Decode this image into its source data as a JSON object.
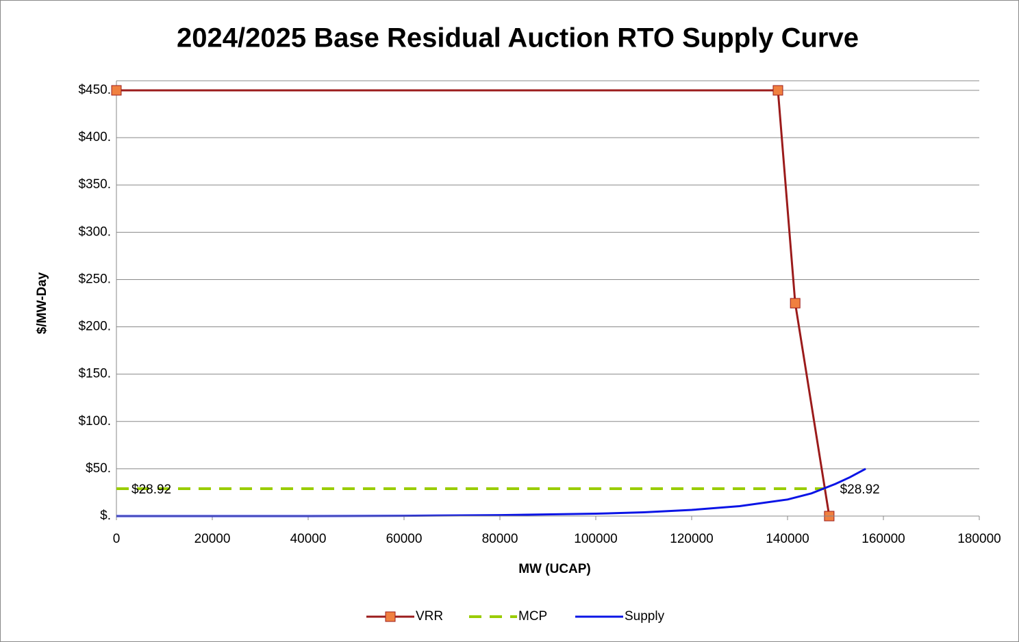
{
  "chart_data": {
    "type": "line",
    "title": "2024/2025 Base Residual Auction RTO Supply Curve",
    "x_label": "MW (UCAP)",
    "y_label": "$/MW-Day",
    "xlim": [
      0,
      180000
    ],
    "xticks": [
      0,
      20000,
      40000,
      60000,
      80000,
      100000,
      120000,
      140000,
      160000,
      180000
    ],
    "ylim": [
      0,
      450
    ],
    "yticks": [
      {
        "value": 0,
        "label": "$."
      },
      {
        "value": 50,
        "label": "$50."
      },
      {
        "value": 100,
        "label": "$100."
      },
      {
        "value": 150,
        "label": "$150."
      },
      {
        "value": 200,
        "label": "$200."
      },
      {
        "value": 250,
        "label": "$250."
      },
      {
        "value": 300,
        "label": "$300."
      },
      {
        "value": 350,
        "label": "$350."
      },
      {
        "value": 400,
        "label": "$400."
      },
      {
        "value": 450,
        "label": "$450."
      }
    ],
    "grid": true,
    "legend": "bottom",
    "series": [
      {
        "name": "VRR",
        "color": "#9b1b1b",
        "marker_color": "#f08040",
        "x": [
          0,
          138000,
          141600,
          148700
        ],
        "values": [
          450,
          450,
          225,
          0
        ]
      },
      {
        "name": "MCP",
        "color": "#99cc00",
        "dashed": true,
        "x": [
          0,
          147800
        ],
        "values": [
          28.92,
          28.92
        ],
        "value_labels": [
          "$28.92",
          "$28.92"
        ]
      },
      {
        "name": "Supply",
        "color": "#0a14e6",
        "x": [
          0,
          40000,
          60000,
          80000,
          100000,
          110000,
          120000,
          130000,
          140000,
          145000,
          150000,
          153000,
          156300
        ],
        "values": [
          0,
          0,
          0.3,
          1,
          2.5,
          4,
          6.5,
          10.5,
          17.5,
          24,
          34,
          41,
          50
        ]
      }
    ]
  }
}
